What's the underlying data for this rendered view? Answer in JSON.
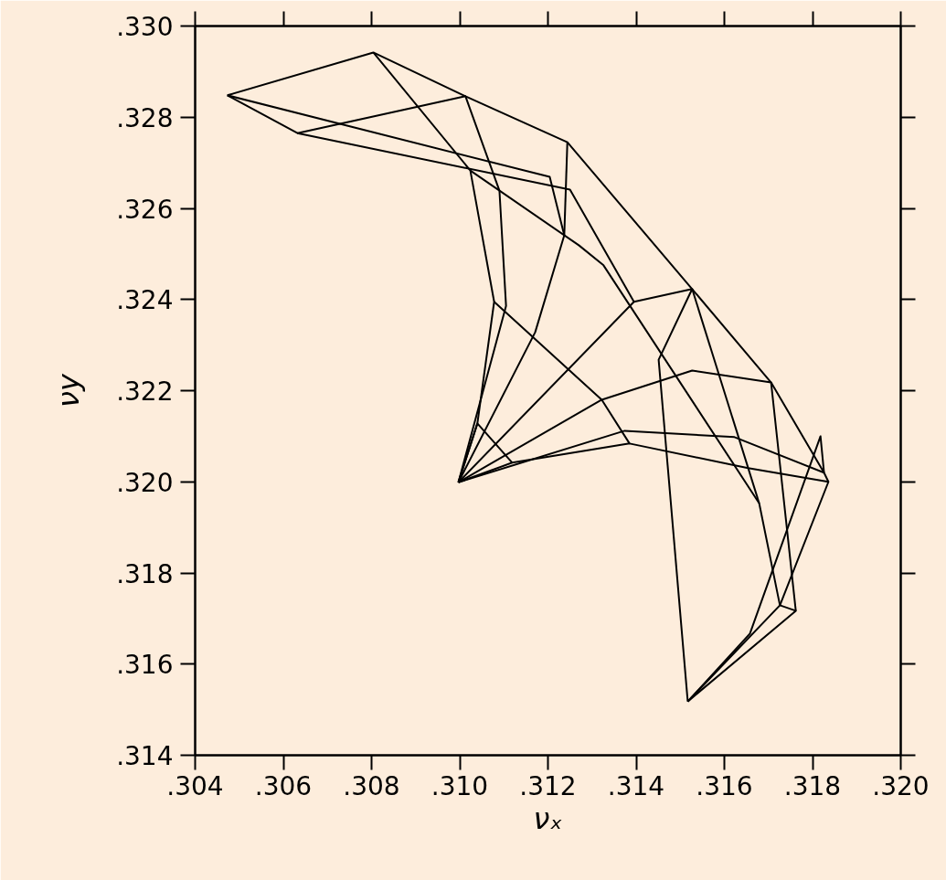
{
  "chart_data": {
    "type": "line",
    "xlabel": "νₓ",
    "ylabel": "νy",
    "xlim": [
      0.304,
      0.32
    ],
    "ylim": [
      0.314,
      0.33
    ],
    "xticks": [
      {
        "value": 0.304,
        "label": ".304"
      },
      {
        "value": 0.306,
        "label": ".306"
      },
      {
        "value": 0.308,
        "label": ".308"
      },
      {
        "value": 0.31,
        "label": ".310"
      },
      {
        "value": 0.312,
        "label": ".312"
      },
      {
        "value": 0.314,
        "label": ".314"
      },
      {
        "value": 0.316,
        "label": ".316"
      },
      {
        "value": 0.318,
        "label": ".318"
      },
      {
        "value": 0.32,
        "label": ".320"
      }
    ],
    "yticks": [
      {
        "value": 0.314,
        "label": ".314"
      },
      {
        "value": 0.316,
        "label": ".316"
      },
      {
        "value": 0.318,
        "label": ".318"
      },
      {
        "value": 0.32,
        "label": ".320"
      },
      {
        "value": 0.322,
        "label": ".322"
      },
      {
        "value": 0.324,
        "label": ".324"
      },
      {
        "value": 0.326,
        "label": ".326"
      },
      {
        "value": 0.328,
        "label": ".328"
      },
      {
        "value": 0.33,
        "label": ".330"
      }
    ],
    "grid": false,
    "marker": "none",
    "line_style": "solid",
    "series": [
      {
        "color": "#000000",
        "x": [
          0.30473,
          0.30804,
          0.31013,
          0.31244,
          0.31527,
          0.31706,
          0.31826,
          0.31836,
          0.31726,
          0.31517
        ],
        "values": [
          0.32848,
          0.32942,
          0.32846,
          0.32745,
          0.32423,
          0.32218,
          0.3202,
          0.32,
          0.31729,
          0.31518
        ]
      },
      {
        "color": "#000000",
        "x": [
          0.30473,
          0.30632,
          0.31013,
          0.3109,
          0.31105,
          0.30997
        ],
        "values": [
          0.32848,
          0.32765,
          0.32846,
          0.32639,
          0.32386,
          0.31999
        ]
      },
      {
        "color": "#000000",
        "x": [
          0.30804,
          0.31024,
          0.31078,
          0.3104,
          0.30997
        ],
        "values": [
          0.32942,
          0.32683,
          0.32395,
          0.32128,
          0.31999
        ]
      },
      {
        "color": "#000000",
        "x": [
          0.30473,
          0.31204,
          0.31237,
          0.31171,
          0.30997
        ],
        "values": [
          0.32848,
          0.32669,
          0.32541,
          0.32328,
          0.31999
        ]
      },
      {
        "color": "#000000",
        "x": [
          0.30632,
          0.3125,
          0.31395,
          0.30997
        ],
        "values": [
          0.32765,
          0.32641,
          0.32395,
          0.31999
        ]
      },
      {
        "color": "#000000",
        "x": [
          0.31395,
          0.31527,
          0.31451,
          0.31517
        ],
        "values": [
          0.32395,
          0.32423,
          0.32268,
          0.31518
        ]
      },
      {
        "color": "#000000",
        "x": [
          0.31244,
          0.31237
        ],
        "values": [
          0.32745,
          0.32541
        ]
      },
      {
        "color": "#000000",
        "x": [
          0.31024,
          0.3127,
          0.31326,
          0.31679,
          0.31726
        ],
        "values": [
          0.32683,
          0.32519,
          0.32475,
          0.31953,
          0.31729
        ]
      },
      {
        "color": "#000000",
        "x": [
          0.31078,
          0.31322,
          0.31385
        ],
        "values": [
          0.32395,
          0.3218,
          0.32084
        ]
      },
      {
        "color": "#000000",
        "x": [
          0.30997,
          0.31322,
          0.31527,
          0.31706,
          0.31762
        ],
        "values": [
          0.31999,
          0.3218,
          0.32244,
          0.32218,
          0.31717
        ]
      },
      {
        "color": "#000000",
        "x": [
          0.30997,
          0.31374,
          0.31623,
          0.31826
        ],
        "values": [
          0.31999,
          0.32112,
          0.32098,
          0.3202
        ]
      },
      {
        "color": "#000000",
        "x": [
          0.30997,
          0.31119,
          0.31385,
          0.31654,
          0.31836
        ],
        "values": [
          0.31999,
          0.32042,
          0.32084,
          0.3203,
          0.32
        ]
      },
      {
        "color": "#000000",
        "x": [
          0.30997,
          0.3104,
          0.31119
        ],
        "values": [
          0.31999,
          0.32128,
          0.32042
        ]
      },
      {
        "color": "#000000",
        "x": [
          0.31826,
          0.31818,
          0.31658,
          0.31517
        ],
        "values": [
          0.3202,
          0.321,
          0.31667,
          0.31518
        ]
      },
      {
        "color": "#000000",
        "x": [
          0.31726,
          0.31762,
          0.31517
        ],
        "values": [
          0.31729,
          0.31717,
          0.31518
        ]
      },
      {
        "color": "#000000",
        "x": [
          0.31527,
          0.31679
        ],
        "values": [
          0.32423,
          0.31953
        ]
      }
    ]
  }
}
